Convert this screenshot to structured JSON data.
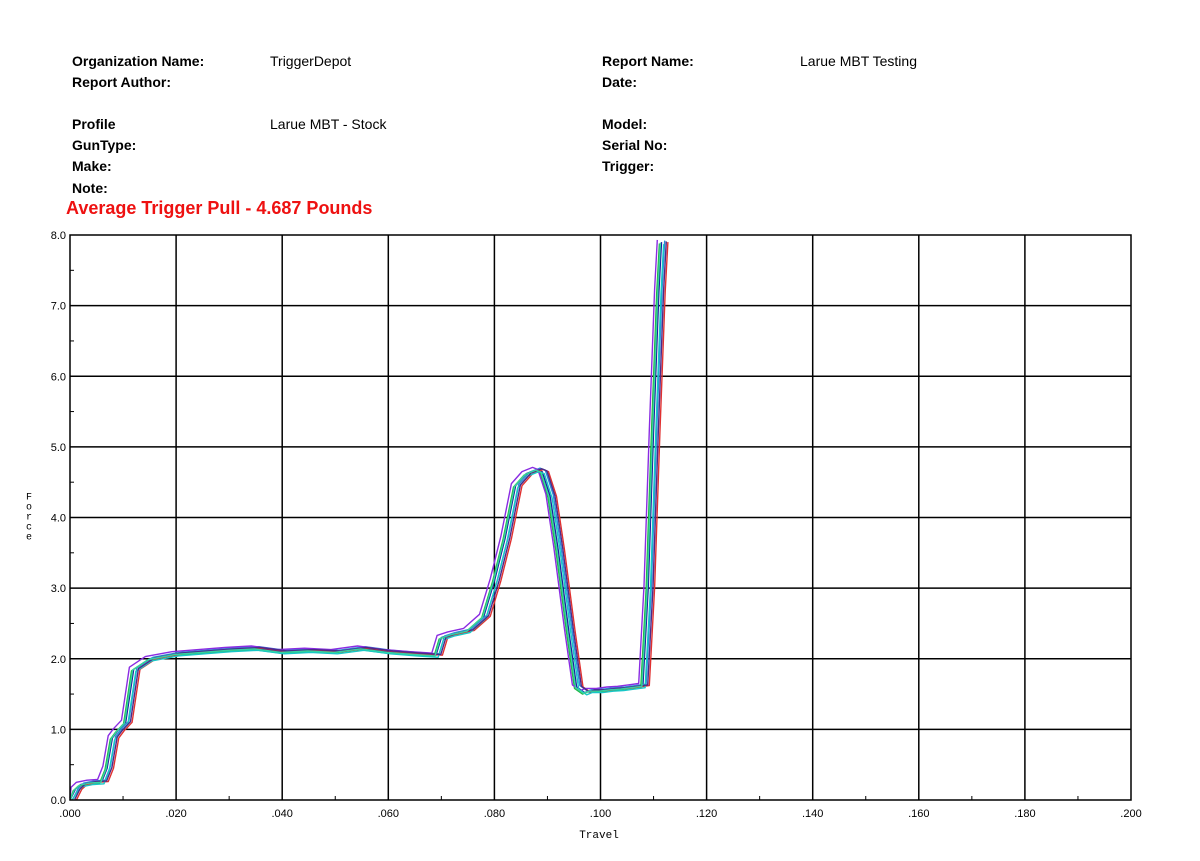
{
  "report": {
    "organization_label": "Organization Name:",
    "organization_value": "TriggerDepot",
    "author_label": "Report Author:",
    "report_name_label": "Report Name:",
    "report_name_value": "Larue MBT Testing",
    "date_label": "Date:",
    "profile_label": "Profile",
    "profile_value": "Larue MBT - Stock",
    "guntype_label": "GunType:",
    "make_label": "Make:",
    "note_label": "Note:",
    "model_label": "Model:",
    "serial_label": "Serial No:",
    "trigger_label": "Trigger:"
  },
  "headline": "Average Trigger Pull - 4.687 Pounds",
  "chart_data": {
    "type": "line",
    "xlabel": "Travel",
    "ylabel": "Force",
    "xlim": [
      0,
      0.2
    ],
    "ylim": [
      0,
      8
    ],
    "x_ticks": [
      ".000",
      ".020",
      ".040",
      ".060",
      ".080",
      ".100",
      ".120",
      ".140",
      ".160",
      ".180",
      ".200"
    ],
    "y_ticks": [
      "0.0",
      "1.0",
      "2.0",
      "3.0",
      "4.0",
      "5.0",
      "6.0",
      "7.0",
      "8.0"
    ],
    "grid": true,
    "legend": "none",
    "series_colors": [
      "#1a1aa0",
      "#2b8fd8",
      "#22b84a",
      "#e03030",
      "#8a2be2",
      "#17c7c7",
      "#4b2a8a",
      "#36d3a0"
    ],
    "base_x": [
      0,
      0.001,
      0.002,
      0.004,
      0.006,
      0.007,
      0.008,
      0.009,
      0.0105,
      0.012,
      0.015,
      0.02,
      0.025,
      0.03,
      0.035,
      0.04,
      0.045,
      0.05,
      0.055,
      0.06,
      0.065,
      0.069,
      0.07,
      0.072,
      0.075,
      0.078,
      0.08,
      0.082,
      0.084,
      0.086,
      0.088,
      0.089,
      0.0905,
      0.092,
      0.094,
      0.0955,
      0.097,
      0.098,
      0.1,
      0.102,
      0.104,
      0.106,
      0.108,
      0.109,
      0.11,
      0.111,
      0.1115
    ],
    "base_y": [
      0,
      0.15,
      0.22,
      0.25,
      0.26,
      0.45,
      0.88,
      0.98,
      1.1,
      1.85,
      2.0,
      2.07,
      2.1,
      2.13,
      2.15,
      2.1,
      2.12,
      2.1,
      2.15,
      2.1,
      2.07,
      2.05,
      2.3,
      2.35,
      2.4,
      2.6,
      3.1,
      3.7,
      4.45,
      4.62,
      4.68,
      4.65,
      4.3,
      3.55,
      2.4,
      1.6,
      1.52,
      1.55,
      1.55,
      1.57,
      1.58,
      1.6,
      1.62,
      3.0,
      5.2,
      7.2,
      7.9
    ],
    "series": [
      {
        "dx": 0.0,
        "dy": 0.0
      },
      {
        "dx": 0.0006,
        "dy": 0.02
      },
      {
        "dx": -0.0004,
        "dy": -0.02
      },
      {
        "dx": 0.0012,
        "dy": 0.0
      },
      {
        "dx": -0.0008,
        "dy": 0.03
      },
      {
        "dx": 0.0004,
        "dy": -0.03
      },
      {
        "dx": 0.0009,
        "dy": 0.01
      },
      {
        "dx": -0.0002,
        "dy": -0.01
      }
    ]
  }
}
